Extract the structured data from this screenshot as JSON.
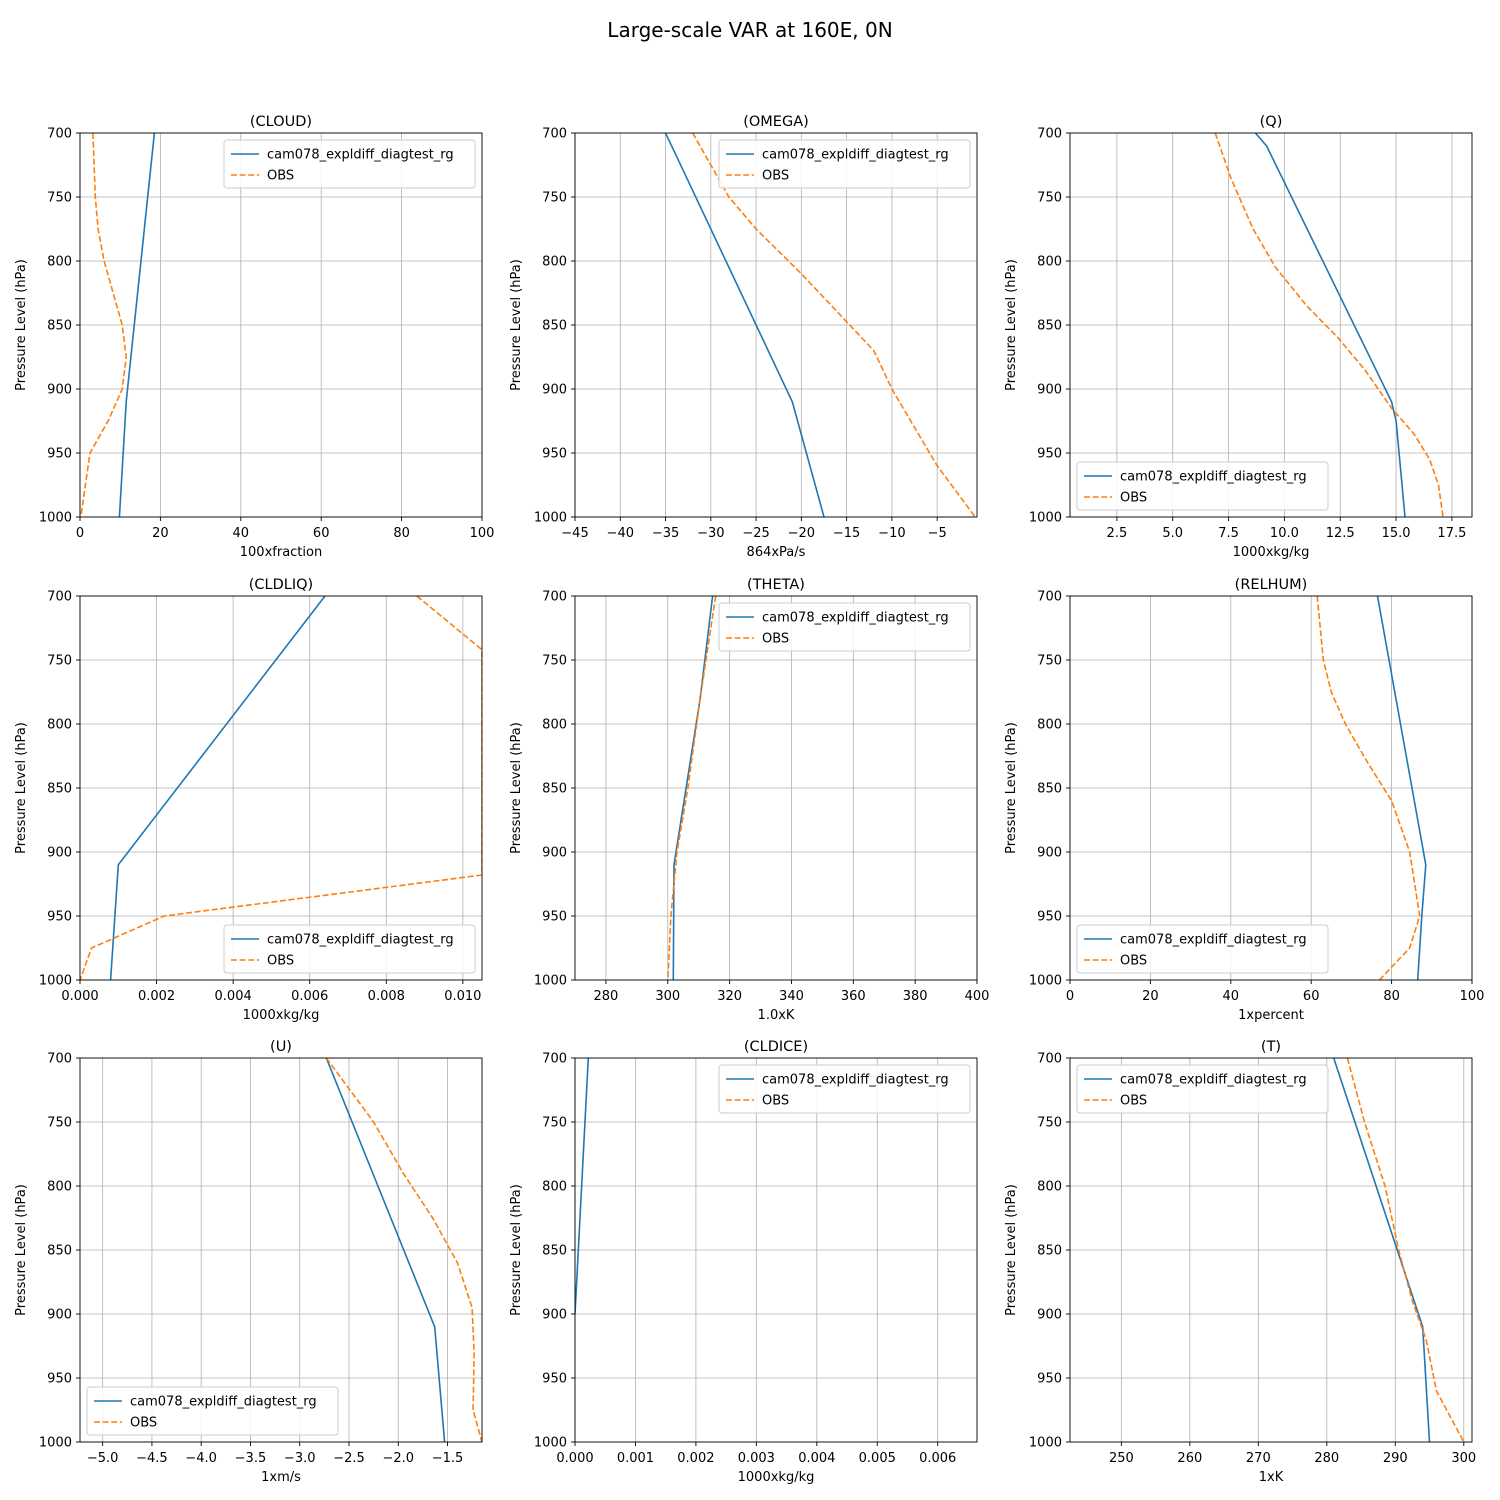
{
  "figure": {
    "title": "Large-scale VAR at 160E, 0N"
  },
  "chart_data": [
    {
      "type": "line",
      "title": "(CLOUD)",
      "xlabel": "100xfraction",
      "ylabel": "Pressure Level (hPa)",
      "xlim": [
        0,
        100
      ],
      "ylim": [
        1000,
        700
      ],
      "xticks": [
        0,
        20,
        40,
        60,
        80,
        100
      ],
      "xtick_labels": [
        "0",
        "20",
        "40",
        "60",
        "80",
        "100"
      ],
      "yticks": [
        700,
        750,
        800,
        850,
        900,
        950,
        1000
      ],
      "grid": true,
      "legend": "top-right",
      "series": [
        {
          "name": "cam078_expldiff_diagtest_rg",
          "color": "#1f77b4",
          "dash": "solid",
          "x": [
            18.5,
            11.5,
            9.8
          ],
          "y": [
            700,
            910,
            1000
          ]
        },
        {
          "name": "OBS",
          "color": "#ff7f0e",
          "dash": "dashed",
          "x": [
            3.2,
            3.8,
            4.5,
            6.0,
            10.5,
            11.5,
            10.5,
            7.0,
            2.5,
            0.2
          ],
          "y": [
            700,
            750,
            775,
            800,
            850,
            875,
            900,
            925,
            950,
            1000
          ]
        }
      ]
    },
    {
      "type": "line",
      "title": "(OMEGA)",
      "xlabel": "864xPa/s",
      "ylabel": "Pressure Level (hPa)",
      "xlim": [
        -45,
        -0.6
      ],
      "ylim": [
        1000,
        700
      ],
      "xticks": [
        -45,
        -40,
        -35,
        -30,
        -25,
        -20,
        -15,
        -10,
        -5
      ],
      "xtick_labels": [
        "−45",
        "−40",
        "−35",
        "−30",
        "−25",
        "−20",
        "−15",
        "−10",
        "−5"
      ],
      "yticks": [
        700,
        750,
        800,
        850,
        900,
        950,
        1000
      ],
      "grid": true,
      "legend": "top-right",
      "series": [
        {
          "name": "cam078_expldiff_diagtest_rg",
          "color": "#1f77b4",
          "dash": "solid",
          "x": [
            -35,
            -34,
            -21,
            -17.5
          ],
          "y": [
            700,
            715,
            910,
            1000
          ]
        },
        {
          "name": "OBS",
          "color": "#ff7f0e",
          "dash": "dashed",
          "x": [
            -32,
            -30,
            -28,
            -25,
            -20,
            -16,
            -12,
            -10,
            -7.5,
            -5,
            -0.8
          ],
          "y": [
            700,
            725,
            750,
            775,
            810,
            840,
            870,
            900,
            930,
            960,
            1000
          ]
        }
      ]
    },
    {
      "type": "line",
      "title": "(Q)",
      "xlabel": "1000xkg/kg",
      "ylabel": "Pressure Level (hPa)",
      "xlim": [
        0.4,
        18.4
      ],
      "ylim": [
        1000,
        700
      ],
      "xticks": [
        2.5,
        5.0,
        7.5,
        10.0,
        12.5,
        15.0,
        17.5
      ],
      "xtick_labels": [
        "2.5",
        "5.0",
        "7.5",
        "10.0",
        "12.5",
        "15.0",
        "17.5"
      ],
      "yticks": [
        700,
        750,
        800,
        850,
        900,
        950,
        1000
      ],
      "grid": true,
      "legend": "bottom-left",
      "series": [
        {
          "name": "cam078_expldiff_diagtest_rg",
          "color": "#1f77b4",
          "dash": "solid",
          "x": [
            8.7,
            9.2,
            14.8,
            15.0,
            15.4
          ],
          "y": [
            700,
            710,
            910,
            925,
            1000
          ]
        },
        {
          "name": "OBS",
          "color": "#ff7f0e",
          "dash": "dashed",
          "x": [
            6.9,
            7.6,
            8.6,
            9.6,
            11.0,
            12.4,
            13.6,
            14.8,
            15.8,
            16.5,
            16.9,
            17.1
          ],
          "y": [
            700,
            735,
            775,
            805,
            835,
            860,
            885,
            915,
            935,
            955,
            975,
            1000
          ]
        }
      ]
    },
    {
      "type": "line",
      "title": "(CLDLIQ)",
      "xlabel": "1000xkg/kg",
      "ylabel": "Pressure Level (hPa)",
      "xlim": [
        0,
        0.0105
      ],
      "ylim": [
        1000,
        700
      ],
      "xticks": [
        0,
        0.002,
        0.004,
        0.006,
        0.008,
        0.01
      ],
      "xtick_labels": [
        "0.000",
        "0.002",
        "0.004",
        "0.006",
        "0.008",
        "0.010"
      ],
      "yticks": [
        700,
        750,
        800,
        850,
        900,
        950,
        1000
      ],
      "grid": true,
      "legend": "bottom-right",
      "series": [
        {
          "name": "cam078_expldiff_diagtest_rg",
          "color": "#1f77b4",
          "dash": "solid",
          "x": [
            0.0064,
            0.001,
            0.0008
          ],
          "y": [
            700,
            910,
            1000
          ]
        },
        {
          "name": "OBS",
          "color": "#ff7f0e",
          "dash": "dashed",
          "x": [
            0.0088,
            0.0105,
            0.0105,
            0.0022,
            0.0003,
            0.0
          ],
          "y": [
            700,
            742,
            918,
            950,
            975,
            1000
          ]
        }
      ]
    },
    {
      "type": "line",
      "title": "(THETA)",
      "xlabel": "1.0xK",
      "ylabel": "Pressure Level (hPa)",
      "xlim": [
        270,
        400
      ],
      "ylim": [
        1000,
        700
      ],
      "xticks": [
        280,
        300,
        320,
        340,
        360,
        380,
        400
      ],
      "xtick_labels": [
        "280",
        "300",
        "320",
        "340",
        "360",
        "380",
        "400"
      ],
      "yticks": [
        700,
        750,
        800,
        850,
        900,
        950,
        1000
      ],
      "grid": true,
      "legend": "top-right",
      "series": [
        {
          "name": "cam078_expldiff_diagtest_rg",
          "color": "#1f77b4",
          "dash": "solid",
          "x": [
            314.5,
            310.5,
            302.0,
            301.8
          ],
          "y": [
            700,
            780,
            910,
            1000
          ]
        },
        {
          "name": "OBS",
          "color": "#ff7f0e",
          "dash": "dashed",
          "x": [
            315.5,
            310.5,
            306.5,
            303.0,
            301.0,
            300.0
          ],
          "y": [
            700,
            780,
            850,
            900,
            950,
            1000
          ]
        }
      ]
    },
    {
      "type": "line",
      "title": "(RELHUM)",
      "xlabel": "1xpercent",
      "ylabel": "Pressure Level (hPa)",
      "xlim": [
        0,
        100
      ],
      "ylim": [
        1000,
        700
      ],
      "xticks": [
        0,
        20,
        40,
        60,
        80,
        100
      ],
      "xtick_labels": [
        "0",
        "20",
        "40",
        "60",
        "80",
        "100"
      ],
      "yticks": [
        700,
        750,
        800,
        850,
        900,
        950,
        1000
      ],
      "grid": true,
      "legend": "bottom-left",
      "series": [
        {
          "name": "cam078_expldiff_diagtest_rg",
          "color": "#1f77b4",
          "dash": "solid",
          "x": [
            76.5,
            88.5,
            87.5,
            86.5
          ],
          "y": [
            700,
            910,
            950,
            1000
          ]
        },
        {
          "name": "OBS",
          "color": "#ff7f0e",
          "dash": "dashed",
          "x": [
            61.5,
            63.0,
            65.0,
            68.5,
            74.0,
            80.0,
            84.5,
            87.0,
            84.5,
            77.0
          ],
          "y": [
            700,
            750,
            775,
            800,
            830,
            860,
            900,
            950,
            975,
            1000
          ]
        }
      ]
    },
    {
      "type": "line",
      "title": "(U)",
      "xlabel": "1xm/s",
      "ylabel": "Pressure Level (hPa)",
      "xlim": [
        -5.23,
        -1.15
      ],
      "ylim": [
        1000,
        700
      ],
      "xticks": [
        -5.0,
        -4.5,
        -4.0,
        -3.5,
        -3.0,
        -2.5,
        -2.0,
        -1.5
      ],
      "xtick_labels": [
        "−5.0",
        "−4.5",
        "−4.0",
        "−3.5",
        "−3.0",
        "−2.5",
        "−2.0",
        "−1.5"
      ],
      "yticks": [
        700,
        750,
        800,
        850,
        900,
        950,
        1000
      ],
      "grid": true,
      "legend": "bottom-left",
      "series": [
        {
          "name": "cam078_expldiff_diagtest_rg",
          "color": "#1f77b4",
          "dash": "solid",
          "x": [
            -2.73,
            -1.63,
            -1.53
          ],
          "y": [
            700,
            910,
            1000
          ]
        },
        {
          "name": "OBS",
          "color": "#ff7f0e",
          "dash": "dashed",
          "x": [
            -2.73,
            -2.25,
            -1.95,
            -1.65,
            -1.4,
            -1.25,
            -1.23,
            -1.24,
            -1.15
          ],
          "y": [
            700,
            750,
            790,
            825,
            860,
            895,
            930,
            975,
            1000
          ]
        }
      ]
    },
    {
      "type": "line",
      "title": "(CLDICE)",
      "xlabel": "1000xkg/kg",
      "ylabel": "Pressure Level (hPa)",
      "xlim": [
        0,
        0.00665
      ],
      "ylim": [
        1000,
        700
      ],
      "xticks": [
        0,
        0.001,
        0.002,
        0.003,
        0.004,
        0.005,
        0.006
      ],
      "xtick_labels": [
        "0.000",
        "0.001",
        "0.002",
        "0.003",
        "0.004",
        "0.005",
        "0.006"
      ],
      "yticks": [
        700,
        750,
        800,
        850,
        900,
        950,
        1000
      ],
      "grid": true,
      "legend": "top-right",
      "series": [
        {
          "name": "cam078_expldiff_diagtest_rg",
          "color": "#1f77b4",
          "dash": "solid",
          "x": [
            0.00022,
            0.0
          ],
          "y": [
            700,
            900
          ]
        },
        {
          "name": "OBS",
          "color": "#ff7f0e",
          "dash": "dashed",
          "x": [],
          "y": []
        }
      ]
    },
    {
      "type": "line",
      "title": "(T)",
      "xlabel": "1xK",
      "ylabel": "Pressure Level (hPa)",
      "xlim": [
        242.5,
        301.2
      ],
      "ylim": [
        1000,
        700
      ],
      "xticks": [
        250,
        260,
        270,
        280,
        290,
        300
      ],
      "xtick_labels": [
        "250",
        "260",
        "270",
        "280",
        "290",
        "300"
      ],
      "yticks": [
        700,
        750,
        800,
        850,
        900,
        950,
        1000
      ],
      "grid": true,
      "legend": "top-left",
      "series": [
        {
          "name": "cam078_expldiff_diagtest_rg",
          "color": "#1f77b4",
          "dash": "solid",
          "x": [
            281.0,
            294.0,
            295.0
          ],
          "y": [
            700,
            910,
            1000
          ]
        },
        {
          "name": "OBS",
          "color": "#ff7f0e",
          "dash": "dashed",
          "x": [
            283.0,
            285.5,
            288.5,
            290.5,
            292.5,
            294.5,
            296.0,
            300.0
          ],
          "y": [
            700,
            750,
            800,
            850,
            890,
            920,
            960,
            1000
          ]
        }
      ]
    }
  ]
}
